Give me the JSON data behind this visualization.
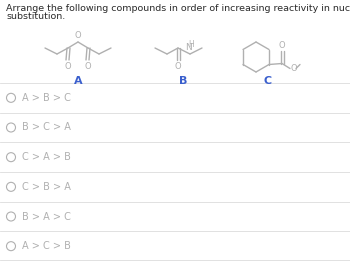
{
  "title_line1": "Arrange the following compounds in order of increasing reactivity in nucleophilic acyl",
  "title_line2": "substitution.",
  "label_A": "A",
  "label_B": "B",
  "label_C": "C",
  "options": [
    "A > B > C",
    "B > C > A",
    "C > A > B",
    "C > B > A",
    "B > A > C",
    "A > C > B"
  ],
  "bg_color": "#ffffff",
  "text_color": "#2a2a2a",
  "label_color": "#3a5fcd",
  "option_text_color": "#b0b0b0",
  "circle_color": "#b0b0b0",
  "divider_color": "#dcdcdc",
  "structure_color": "#b0b0b0",
  "title_fontsize": 6.8,
  "option_fontsize": 7.0,
  "label_fontsize": 8.0,
  "struct_lw": 1.0,
  "fig_width": 3.5,
  "fig_height": 2.61,
  "dpi": 100
}
